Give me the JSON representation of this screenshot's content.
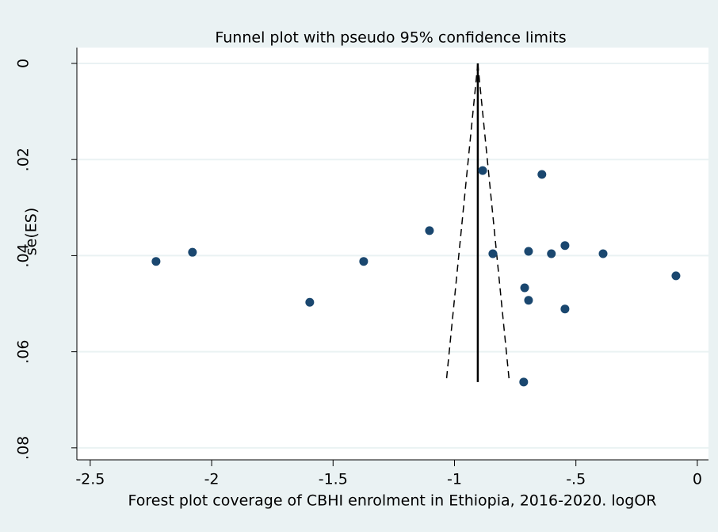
{
  "chart_data": {
    "type": "funnel",
    "title": "Funnel plot with pseudo 95% confidence limits",
    "x_label": "Forest plot coverage of CBHI enrolment in Ethiopia, 2016-2020.    logOR",
    "y_label": "se(ES)",
    "color": "#1a476f",
    "x": [
      -2.229,
      -2.079,
      -1.596,
      -1.374,
      -1.103,
      -0.884,
      -0.842,
      -0.64,
      -0.695,
      -0.601,
      -0.545,
      -0.388,
      -0.711,
      -0.695,
      -0.545,
      -0.088,
      -0.715
    ],
    "values": [
      0.0412,
      0.0393,
      0.0497,
      0.0412,
      0.0348,
      0.0223,
      0.0396,
      0.0231,
      0.0391,
      0.0396,
      0.0379,
      0.0396,
      0.0467,
      0.0493,
      0.0511,
      0.0442,
      0.0663
    ],
    "pooled_estimate": -0.904,
    "funnel_se_max": 0.0663,
    "xlim": [
      -2.555,
      0.046
    ],
    "ylim": [
      -0.0033,
      0.0825
    ],
    "y_inverted": true,
    "xticks": [
      -2.5,
      -2,
      -1.5,
      -1,
      {
        "value": -0.5,
        "label": "-.5"
      },
      0
    ],
    "yticks": [
      0,
      {
        "value": 0.02,
        "label": ".02"
      },
      {
        "value": 0.04,
        "label": ".04"
      },
      {
        "value": 0.06,
        "label": ".06"
      },
      {
        "value": 0.08,
        "label": ".08"
      }
    ],
    "grid": true
  }
}
